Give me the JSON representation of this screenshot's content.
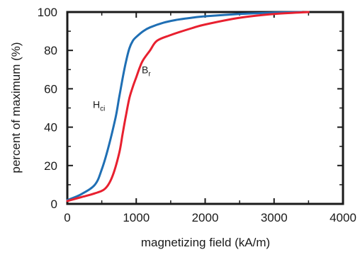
{
  "chart_data": {
    "type": "line",
    "title": "",
    "xlabel": "magnetizing field (kA/m)",
    "ylabel": "percent of maximum (%)",
    "xlim": [
      0,
      4000
    ],
    "ylim": [
      0,
      100
    ],
    "xticks": [
      "0",
      "1000",
      "2000",
      "3000",
      "4000"
    ],
    "yticks": [
      "0",
      "20",
      "40",
      "60",
      "80",
      "100"
    ],
    "grid": false,
    "series": [
      {
        "name": "Hci",
        "color": "#1f6fb4",
        "x": [
          0,
          200,
          400,
          500,
          600,
          700,
          750,
          800,
          850,
          900,
          950,
          1000,
          1100,
          1200,
          1400,
          1600,
          1800,
          2000,
          2500,
          3000,
          3400
        ],
        "y": [
          2,
          5,
          10,
          18,
          30,
          45,
          55,
          65,
          74,
          81,
          85,
          87,
          90,
          92,
          94.5,
          96,
          97,
          97.8,
          99,
          99.7,
          100
        ]
      },
      {
        "name": "Br",
        "color": "#e8202f",
        "x": [
          0,
          200,
          400,
          550,
          650,
          750,
          800,
          850,
          900,
          950,
          1000,
          1050,
          1100,
          1200,
          1300,
          1500,
          1800,
          2000,
          2500,
          3000,
          3500
        ],
        "y": [
          1.5,
          3.5,
          5.5,
          8,
          14,
          26,
          36,
          46,
          55,
          61,
          66,
          71,
          75,
          80,
          85,
          88,
          91.5,
          93.5,
          97,
          99,
          100
        ]
      }
    ],
    "annotations": [
      {
        "main": "H",
        "sub": "ci",
        "x": 370,
        "y": 50
      },
      {
        "main": "B",
        "sub": "r",
        "x": 1080,
        "y": 68
      }
    ]
  }
}
